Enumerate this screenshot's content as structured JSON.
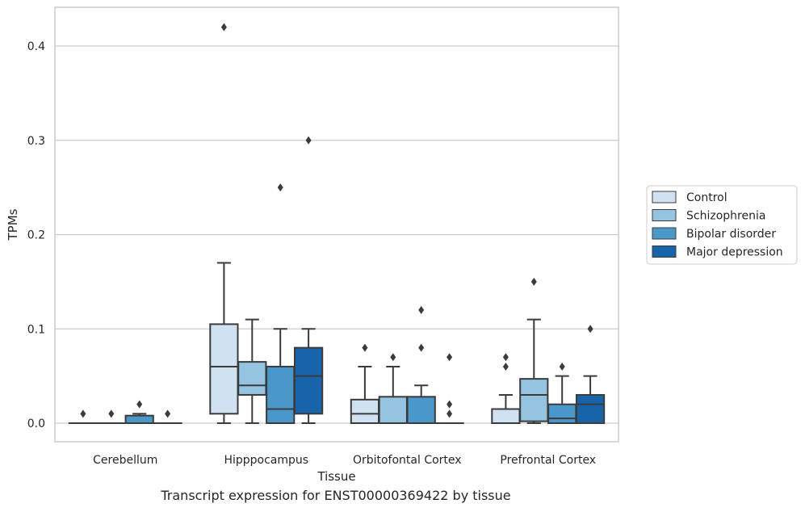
{
  "caption": "Transcript expression for ENST00000369422 by tissue",
  "chart_data": {
    "type": "boxplot",
    "xlabel": "Tissue",
    "ylabel": "TPMs",
    "ylim": [
      -0.02,
      0.44
    ],
    "yticks": [
      0.0,
      0.1,
      0.2,
      0.3,
      0.4
    ],
    "ytick_labels": [
      "0.0",
      "0.1",
      "0.2",
      "0.3",
      "0.4"
    ],
    "grid": "horizontal",
    "legend_position": "right",
    "categories": [
      "Cerebellum",
      "Hipppocampus",
      "Orbitofontal Cortex",
      "Prefrontal Cortex"
    ],
    "series": [
      {
        "name": "Control",
        "color": "#d0e1f2",
        "boxes": [
          {
            "whislo": 0.0,
            "q1": 0.0,
            "med": 0.0,
            "q3": 0.0,
            "whishi": 0.0,
            "fliers": [
              0.01
            ]
          },
          {
            "whislo": 0.0,
            "q1": 0.01,
            "med": 0.06,
            "q3": 0.105,
            "whishi": 0.17,
            "fliers": [
              0.42
            ]
          },
          {
            "whislo": 0.0,
            "q1": 0.0,
            "med": 0.01,
            "q3": 0.025,
            "whishi": 0.06,
            "fliers": [
              0.08
            ]
          },
          {
            "whislo": 0.0,
            "q1": 0.0,
            "med": 0.0,
            "q3": 0.015,
            "whishi": 0.03,
            "fliers": [
              0.06,
              0.07
            ]
          }
        ]
      },
      {
        "name": "Schizophrenia",
        "color": "#94c4df",
        "boxes": [
          {
            "whislo": 0.0,
            "q1": 0.0,
            "med": 0.0,
            "q3": 0.0,
            "whishi": 0.0,
            "fliers": [
              0.01
            ]
          },
          {
            "whislo": 0.0,
            "q1": 0.03,
            "med": 0.04,
            "q3": 0.065,
            "whishi": 0.11,
            "fliers": []
          },
          {
            "whislo": 0.0,
            "q1": 0.0,
            "med": 0.0,
            "q3": 0.028,
            "whishi": 0.06,
            "fliers": [
              0.07
            ]
          },
          {
            "whislo": 0.0,
            "q1": 0.002,
            "med": 0.03,
            "q3": 0.047,
            "whishi": 0.11,
            "fliers": [
              0.15
            ]
          }
        ]
      },
      {
        "name": "Bipolar disorder",
        "color": "#4a98c9",
        "boxes": [
          {
            "whislo": 0.0,
            "q1": 0.0,
            "med": 0.0,
            "q3": 0.008,
            "whishi": 0.01,
            "fliers": [
              0.02
            ]
          },
          {
            "whislo": 0.0,
            "q1": 0.0,
            "med": 0.015,
            "q3": 0.06,
            "whishi": 0.1,
            "fliers": [
              0.25
            ]
          },
          {
            "whislo": 0.0,
            "q1": 0.0,
            "med": 0.0,
            "q3": 0.028,
            "whishi": 0.04,
            "fliers": [
              0.08,
              0.12
            ]
          },
          {
            "whislo": 0.0,
            "q1": 0.0,
            "med": 0.005,
            "q3": 0.02,
            "whishi": 0.05,
            "fliers": [
              0.06
            ]
          }
        ]
      },
      {
        "name": "Major depression",
        "color": "#1764ab",
        "boxes": [
          {
            "whislo": 0.0,
            "q1": 0.0,
            "med": 0.0,
            "q3": 0.0,
            "whishi": 0.0,
            "fliers": [
              0.01
            ]
          },
          {
            "whislo": 0.0,
            "q1": 0.01,
            "med": 0.05,
            "q3": 0.08,
            "whishi": 0.1,
            "fliers": [
              0.3
            ]
          },
          {
            "whislo": 0.0,
            "q1": 0.0,
            "med": 0.0,
            "q3": 0.0,
            "whishi": 0.0,
            "fliers": [
              0.01,
              0.02,
              0.07
            ]
          },
          {
            "whislo": 0.0,
            "q1": 0.0,
            "med": 0.02,
            "q3": 0.03,
            "whishi": 0.05,
            "fliers": [
              0.1
            ]
          }
        ]
      }
    ]
  }
}
